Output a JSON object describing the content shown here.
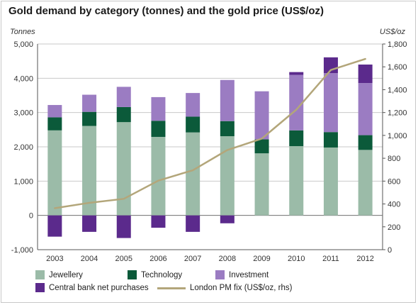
{
  "title": "Gold demand by category (tonnes) and the gold price (US$/oz)",
  "left_axis_unit": "Tonnes",
  "right_axis_unit": "US$/oz",
  "colors": {
    "jewellery": "#9bbba8",
    "technology": "#0b5a3a",
    "investment": "#9b7cc2",
    "central_bank": "#5b2a8c",
    "price_line": "#b3a67a",
    "grid": "#c9c9c9"
  },
  "chart_data": {
    "type": "bar",
    "stacked": true,
    "categories": [
      "2003",
      "2004",
      "2005",
      "2006",
      "2007",
      "2008",
      "2009",
      "2010",
      "2011",
      "2012"
    ],
    "series": [
      {
        "name": "Jewellery",
        "values": [
          2480,
          2610,
          2720,
          2290,
          2420,
          2310,
          1810,
          2020,
          1980,
          1910
        ]
      },
      {
        "name": "Technology",
        "values": [
          380,
          410,
          440,
          470,
          460,
          440,
          410,
          460,
          450,
          430
        ]
      },
      {
        "name": "Investment",
        "values": [
          360,
          500,
          590,
          690,
          690,
          1200,
          1400,
          1620,
          1720,
          1520
        ]
      },
      {
        "name": "Central bank net purchases",
        "values": [
          -620,
          -480,
          -660,
          -360,
          -480,
          -230,
          0,
          80,
          460,
          540
        ]
      }
    ],
    "line_series": {
      "name": "London PM fix (US$/oz, rhs)",
      "values": [
        363,
        410,
        445,
        604,
        695,
        872,
        972,
        1225,
        1572,
        1669
      ]
    },
    "y_left": {
      "min": -1000,
      "max": 5000,
      "ticks": [
        -1000,
        0,
        1000,
        2000,
        3000,
        4000,
        5000
      ],
      "tick_labels": [
        "-1,000",
        "0",
        "1,000",
        "2,000",
        "3,000",
        "4,000",
        "5,000"
      ]
    },
    "y_right": {
      "min": 0,
      "max": 1800,
      "ticks": [
        0,
        200,
        400,
        600,
        800,
        1000,
        1200,
        1400,
        1600,
        1800
      ],
      "tick_labels": [
        "0",
        "200",
        "400",
        "600",
        "800",
        "1,000",
        "1,200",
        "1,400",
        "1,600",
        "1,800"
      ]
    },
    "grid": "horizontal",
    "legend_position": "bottom"
  },
  "legend": [
    {
      "label": "Jewellery",
      "key": "jewellery"
    },
    {
      "label": "Technology",
      "key": "technology"
    },
    {
      "label": "Investment",
      "key": "investment"
    },
    {
      "label": "Central bank net purchases",
      "key": "central_bank"
    },
    {
      "label": "London PM fix (US$/oz, rhs)",
      "key": "price_line"
    }
  ]
}
